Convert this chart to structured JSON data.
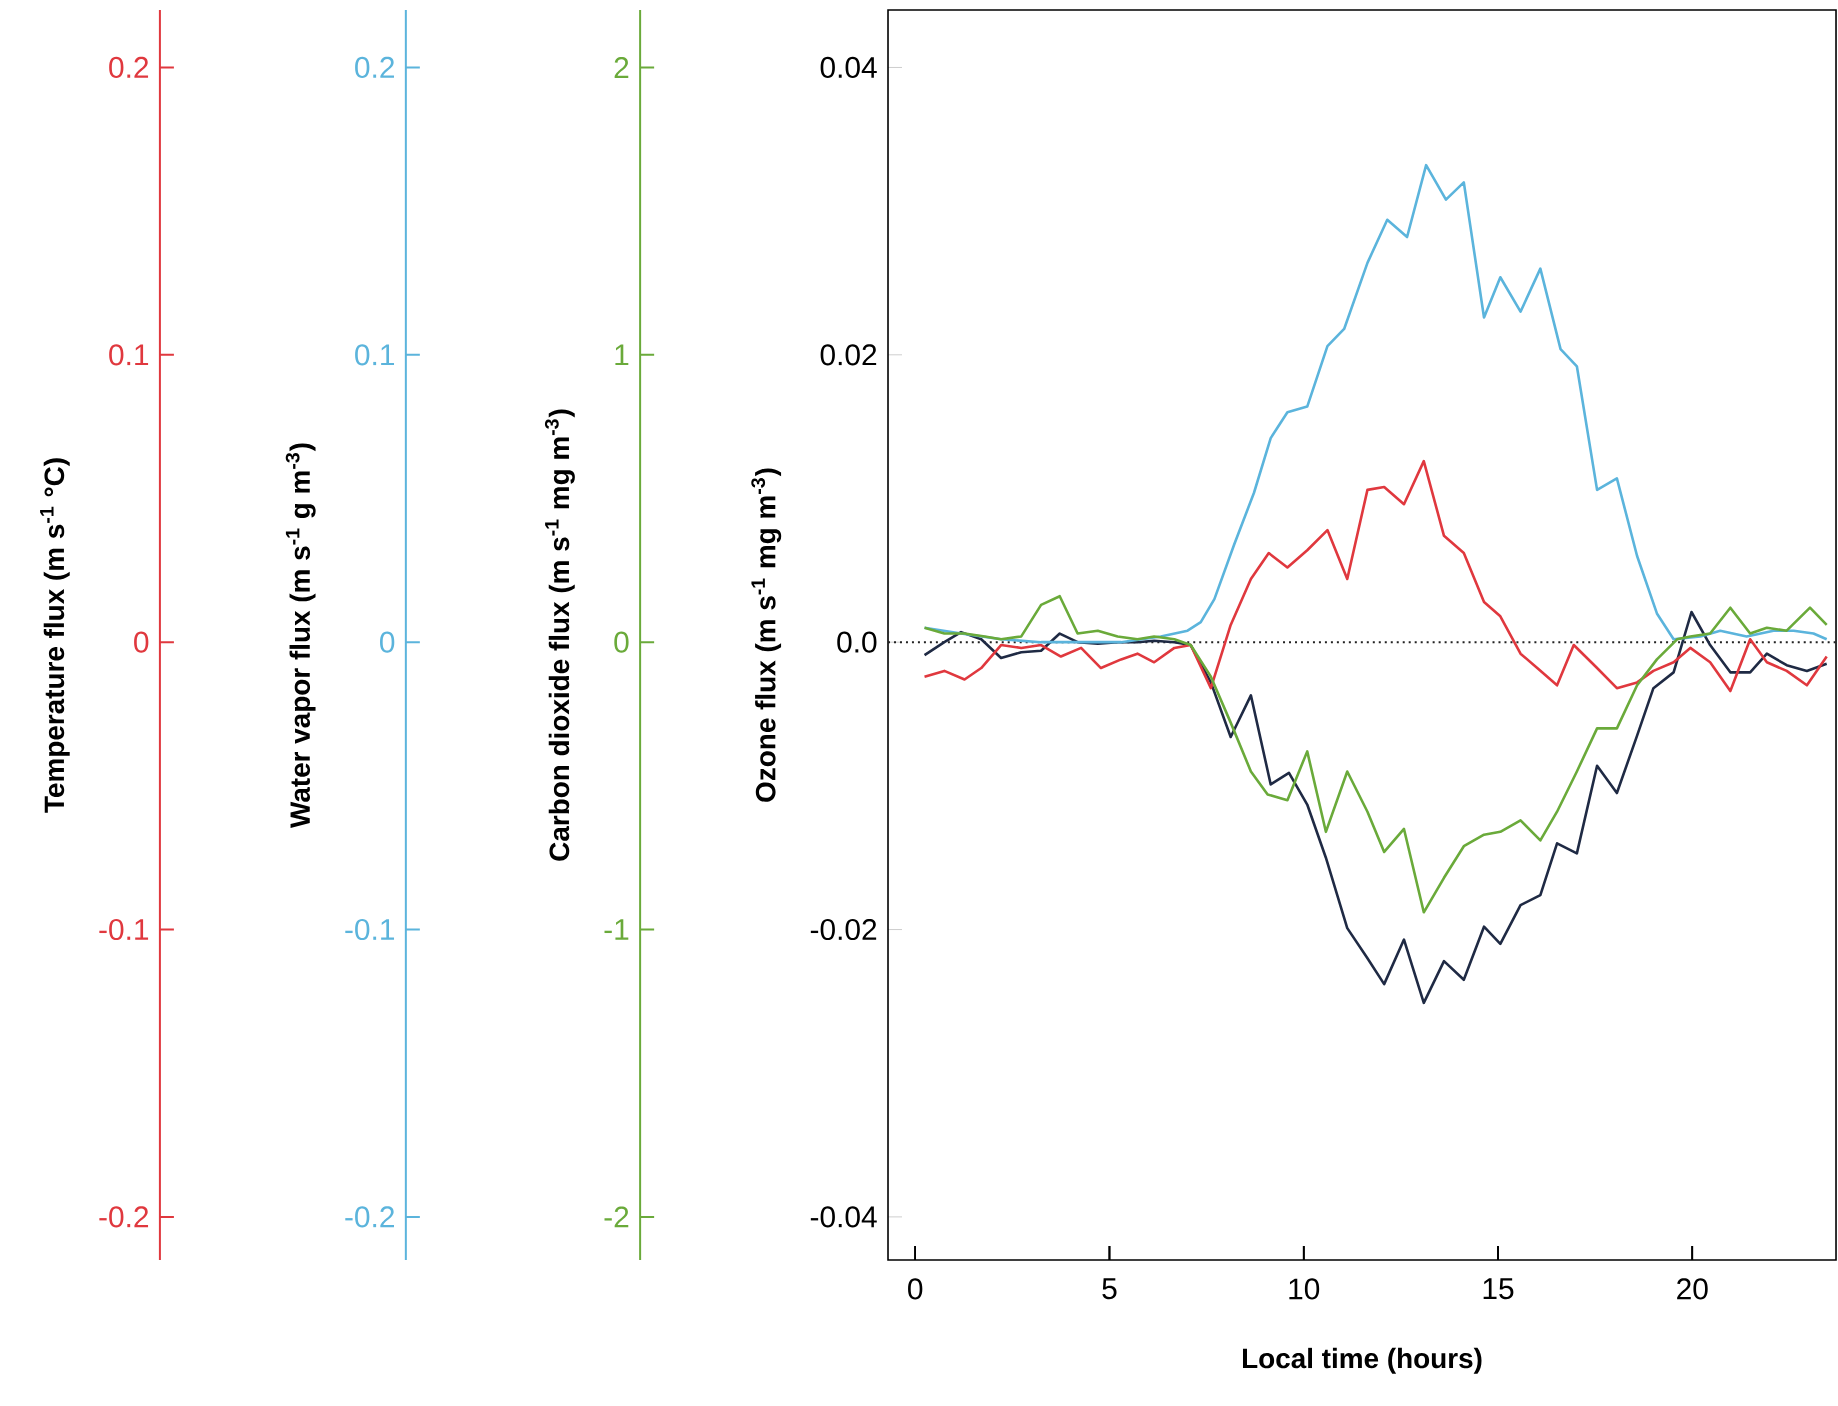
{
  "chart_data": [
    {
      "type": "line",
      "xlabel": "Local time (hours)",
      "ylabel": "Ozone flux (m s$^{-1}$ mg m$^{-3}$)",
      "xlim": [
        -0.7,
        23.7
      ],
      "xticks": [
        0,
        5,
        10,
        15,
        20
      ],
      "ylim": [
        -0.043,
        0.044
      ],
      "yticks": [
        -0.04,
        -0.02,
        {
          "value": 0,
          "label": "0.0"
        },
        0.02,
        0.04
      ],
      "marker": "none",
      "line_style": "solid",
      "ref_lines": [
        {
          "axis": "y",
          "value": 0,
          "line_style": "dotted",
          "color": "#222222"
        }
      ],
      "series": [
        {
          "color": "#1f2a44",
          "x": [
            0.24,
            0.75,
            1.18,
            1.7,
            2.21,
            2.73,
            3.24,
            3.72,
            4.18,
            4.7,
            5.21,
            5.72,
            6.15,
            6.67,
            7.09,
            7.61,
            8.12,
            8.64,
            9.15,
            9.62,
            10.09,
            10.57,
            11.12,
            11.64,
            12.07,
            12.58,
            13.09,
            13.61,
            14.12,
            14.64,
            15.06,
            15.58,
            16.09,
            16.52,
            17.03,
            17.55,
            18.06,
            18.58,
            19.0,
            19.52,
            19.98,
            20.46,
            20.98,
            21.49,
            21.92,
            22.43,
            22.95,
            23.46
          ],
          "values": [
            -0.0009,
            0.0,
            0.0007,
            0.0002,
            -0.0011,
            -0.0007,
            -0.0006,
            0.0006,
            0.0,
            -0.0001,
            0.0,
            0.0,
            0.0001,
            0.0,
            -0.0002,
            -0.0028,
            -0.0066,
            -0.0037,
            -0.0099,
            -0.0091,
            -0.0113,
            -0.015,
            -0.0199,
            -0.022,
            -0.0238,
            -0.0207,
            -0.0251,
            -0.0222,
            -0.0235,
            -0.0198,
            -0.021,
            -0.0183,
            -0.0176,
            -0.014,
            -0.0147,
            -0.0086,
            -0.0105,
            -0.0065,
            -0.0032,
            -0.0021,
            0.0021,
            -0.0002,
            -0.0021,
            -0.0021,
            -0.0008,
            -0.0016,
            -0.002,
            -0.0015
          ]
        }
      ]
    },
    {
      "type": "line",
      "ylabel": "Temperature flux (m s$^{-1}$ °C)",
      "xlim": [
        -19.44,
        23.7
      ],
      "xticks": [
        0,
        5,
        10,
        15,
        20
      ],
      "ylim": [
        -0.215,
        0.22
      ],
      "yticks": [
        -0.2,
        -0.1,
        0,
        0.1,
        0.2
      ],
      "tick_labels": "y",
      "marker": "none",
      "line_style": "solid",
      "series": [
        {
          "color": "#e0383e",
          "x": [
            0.24,
            0.75,
            1.27,
            1.7,
            2.21,
            2.73,
            3.24,
            3.75,
            4.27,
            4.78,
            5.3,
            5.72,
            6.15,
            6.67,
            7.09,
            7.61,
            8.12,
            8.64,
            9.1,
            9.58,
            10.09,
            10.61,
            11.12,
            11.64,
            12.07,
            12.58,
            13.09,
            13.61,
            14.12,
            14.64,
            15.06,
            15.58,
            16.01,
            16.52,
            16.95,
            17.55,
            18.06,
            18.58,
            19.0,
            19.52,
            19.95,
            20.46,
            20.98,
            21.49,
            21.92,
            22.43,
            22.95,
            23.46
          ],
          "values": [
            -0.012,
            -0.01,
            -0.013,
            -0.009,
            -0.001,
            -0.002,
            -0.001,
            -0.005,
            -0.002,
            -0.009,
            -0.006,
            -0.004,
            -0.007,
            -0.002,
            -0.001,
            -0.016,
            0.006,
            0.022,
            0.031,
            0.026,
            0.032,
            0.039,
            0.022,
            0.053,
            0.054,
            0.048,
            0.063,
            0.037,
            0.031,
            0.014,
            0.009,
            -0.004,
            -0.009,
            -0.015,
            -0.001,
            -0.009,
            -0.016,
            -0.014,
            -0.01,
            -0.007,
            -0.002,
            -0.007,
            -0.017,
            0.001,
            -0.007,
            -0.01,
            -0.015,
            -0.005
          ]
        }
      ]
    },
    {
      "type": "line",
      "ylabel": "Water vapor flux (m s$^{-1}$ g m$^{-3}$)",
      "xlim": [
        -13.11,
        23.7
      ],
      "xticks": [
        0,
        5,
        10,
        15,
        20
      ],
      "ylim": [
        -0.215,
        0.22
      ],
      "yticks": [
        -0.2,
        -0.1,
        0,
        0.1,
        0.2
      ],
      "tick_labels": "y",
      "marker": "none",
      "line_style": "solid",
      "series": [
        {
          "color": "#5bb4dc",
          "x": [
            0.24,
            1.18,
            2.21,
            3.24,
            4.27,
            5.3,
            6.32,
            7.01,
            7.35,
            7.7,
            8.21,
            8.72,
            9.15,
            9.58,
            10.09,
            10.61,
            11.04,
            11.64,
            12.15,
            12.66,
            13.15,
            13.66,
            14.12,
            14.64,
            15.06,
            15.58,
            16.09,
            16.61,
            17.03,
            17.55,
            18.06,
            18.58,
            19.09,
            19.52,
            20.21,
            20.72,
            21.4,
            22.09,
            22.61,
            23.12,
            23.46
          ],
          "values": [
            0.005,
            0.003,
            0.001,
            0.0,
            0.0,
            0.0,
            0.002,
            0.004,
            0.007,
            0.015,
            0.034,
            0.052,
            0.071,
            0.08,
            0.082,
            0.103,
            0.109,
            0.132,
            0.147,
            0.141,
            0.166,
            0.154,
            0.16,
            0.113,
            0.127,
            0.115,
            0.13,
            0.102,
            0.096,
            0.053,
            0.057,
            0.03,
            0.01,
            0.001,
            0.002,
            0.004,
            0.002,
            0.004,
            0.004,
            0.003,
            0.001
          ]
        }
      ]
    },
    {
      "type": "line",
      "ylabel": "Carbon dioxide flux (m s$^{-1}$ mg m$^{-3}$)",
      "xlim": [
        -7.08,
        23.7
      ],
      "xticks": [
        0,
        5,
        10,
        15,
        20
      ],
      "ylim": [
        -2.15,
        2.2
      ],
      "yticks": [
        -2,
        -1,
        0,
        1,
        2
      ],
      "tick_labels": "y",
      "marker": "none",
      "line_style": "solid",
      "series": [
        {
          "color": "#6aaa3a",
          "x": [
            0.24,
            0.75,
            1.27,
            1.79,
            2.21,
            2.73,
            3.24,
            3.72,
            4.18,
            4.7,
            5.21,
            5.72,
            6.15,
            6.67,
            7.09,
            7.61,
            8.12,
            8.64,
            9.07,
            9.58,
            10.09,
            10.57,
            11.12,
            11.64,
            12.07,
            12.58,
            13.09,
            13.61,
            14.12,
            14.64,
            15.06,
            15.58,
            16.09,
            16.52,
            17.03,
            17.55,
            18.06,
            18.58,
            19.09,
            19.61,
            19.95,
            20.46,
            20.98,
            21.49,
            21.92,
            22.43,
            23.03,
            23.46
          ],
          "values": [
            0.05,
            0.03,
            0.03,
            0.02,
            0.01,
            0.02,
            0.13,
            0.16,
            0.03,
            0.04,
            0.02,
            0.01,
            0.02,
            0.01,
            -0.01,
            -0.12,
            -0.28,
            -0.45,
            -0.53,
            -0.55,
            -0.38,
            -0.66,
            -0.45,
            -0.59,
            -0.73,
            -0.65,
            -0.94,
            -0.82,
            -0.71,
            -0.67,
            -0.66,
            -0.62,
            -0.69,
            -0.59,
            -0.45,
            -0.3,
            -0.3,
            -0.15,
            -0.06,
            0.01,
            0.02,
            0.03,
            0.12,
            0.03,
            0.05,
            0.04,
            0.12,
            0.06
          ]
        }
      ]
    }
  ]
}
